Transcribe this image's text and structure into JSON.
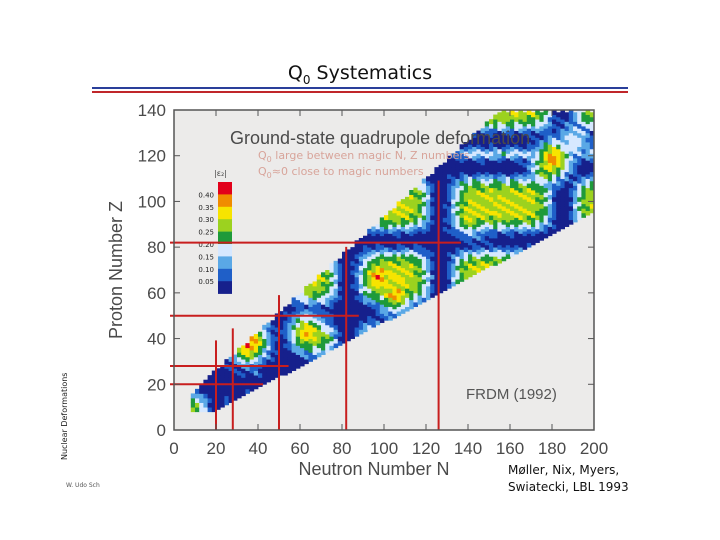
{
  "slide": {
    "title_main": "Q",
    "title_sub": "0",
    "title_rest": " Systematics",
    "side_label": "Nuclear Deformations",
    "footer_left": "W. Udo Schröder, 2007",
    "credit_line1": "Møller, Nix, Myers,",
    "credit_line2": "Swiatecki, LBL 1993",
    "accent_blue": "#2a3f9a",
    "accent_red": "#c0262a"
  },
  "chart_data": {
    "type": "heatmap",
    "title": "Ground-state quadrupole deformation",
    "xlabel": "Neutron Number N",
    "ylabel": "Proton Number Z",
    "xlim": [
      0,
      200
    ],
    "ylim": [
      0,
      140
    ],
    "xticks": [
      0,
      20,
      40,
      60,
      80,
      100,
      120,
      140,
      160,
      180,
      200
    ],
    "yticks": [
      0,
      20,
      40,
      60,
      80,
      100,
      120,
      140
    ],
    "annotations": [
      {
        "q": "Q",
        "sub": "0",
        "text": " large between magic N, Z numbers"
      },
      {
        "q": "Q",
        "sub": "0",
        "text": "≈0 close to magic numbers"
      }
    ],
    "model_label": "FRDM (1992)",
    "colorbar": {
      "label": "|ε₂|",
      "ticks": [
        "0.40",
        "0.35",
        "0.30",
        "0.25",
        "0.20",
        "0.15",
        "0.10",
        "0.05"
      ],
      "colors": [
        "#e2001a",
        "#f08c00",
        "#f7e400",
        "#9cd21f",
        "#1e9a3a",
        "#d6e8ff",
        "#5aa8e6",
        "#1f5fc8",
        "#16208c"
      ]
    },
    "magic_numbers": {
      "N": [
        20,
        28,
        50,
        82,
        126
      ],
      "Z": [
        20,
        28,
        50,
        82
      ]
    },
    "line_color": "#c81e1e",
    "hotspots": [
      {
        "n": 34,
        "z": 36,
        "v": 0.36
      },
      {
        "n": 36,
        "z": 38,
        "v": 0.3
      },
      {
        "n": 62,
        "z": 42,
        "v": 0.3
      },
      {
        "n": 66,
        "z": 40,
        "v": 0.25
      },
      {
        "n": 96,
        "z": 66,
        "v": 0.32
      },
      {
        "n": 98,
        "z": 64,
        "v": 0.28
      },
      {
        "n": 104,
        "z": 58,
        "v": 0.3
      },
      {
        "n": 144,
        "z": 94,
        "v": 0.24
      },
      {
        "n": 140,
        "z": 92,
        "v": 0.26
      },
      {
        "n": 176,
        "z": 114,
        "v": 0.28
      },
      {
        "n": 180,
        "z": 118,
        "v": 0.34
      },
      {
        "n": 190,
        "z": 126,
        "v": 0.18
      }
    ]
  }
}
